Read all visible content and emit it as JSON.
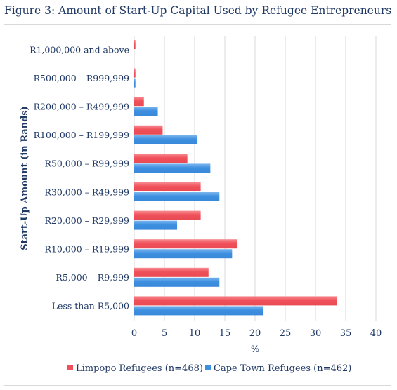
{
  "figure_title": "Figure 3: Amount of Start-Up Capital Used by Refugee Entrepreneurs",
  "chart_data": {
    "type": "bar",
    "orientation": "horizontal",
    "title": "Figure 3: Amount of Start-Up Capital Used by Refugee Entrepreneurs",
    "xlabel": "%",
    "ylabel": "Start-Up Amount (in Rands)",
    "xlim": [
      0,
      40
    ],
    "x_ticks": [
      0,
      5,
      10,
      15,
      20,
      25,
      30,
      35,
      40
    ],
    "grid": true,
    "legend_position": "bottom",
    "categories": [
      "R1,000,000 and above",
      "R500,000  – R999,999",
      "R200,000  – R499,999",
      "R100,000  – R199,999",
      "R50,000  – R99,999",
      "R30,000  – R49,999",
      "R20,000  – R29,999",
      "R10,000  – R19,999",
      "R5,000  – R9,999",
      "Less than R5,000"
    ],
    "series": [
      {
        "name": "Limpopo Refugees (n=468)",
        "color": "#f0505a",
        "values": [
          0.2,
          0.2,
          1.6,
          4.7,
          8.8,
          11.0,
          11.0,
          17.1,
          12.3,
          33.5
        ]
      },
      {
        "name": "Cape Town Refugees (n=462)",
        "color": "#3d8fe0",
        "values": [
          0,
          0.2,
          3.9,
          10.4,
          12.6,
          14.1,
          7.1,
          16.2,
          14.1,
          21.4
        ]
      }
    ]
  }
}
